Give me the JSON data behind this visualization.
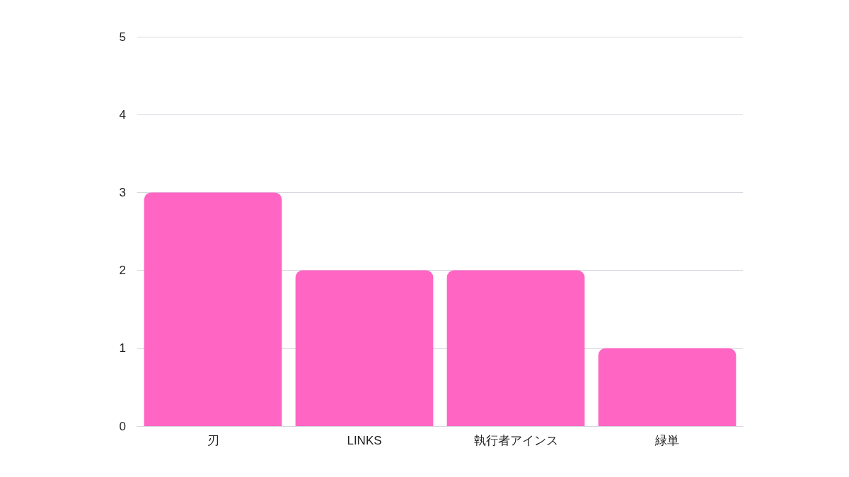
{
  "chart_data": {
    "type": "bar",
    "categories": [
      "刃",
      "LINKS",
      "執行者アインス",
      "緑単"
    ],
    "values": [
      3,
      2,
      2,
      1
    ],
    "color": "#ff66c4",
    "ylim": [
      0,
      5
    ],
    "yticks": [
      0,
      1,
      2,
      3,
      4,
      5
    ],
    "grid": "y"
  }
}
